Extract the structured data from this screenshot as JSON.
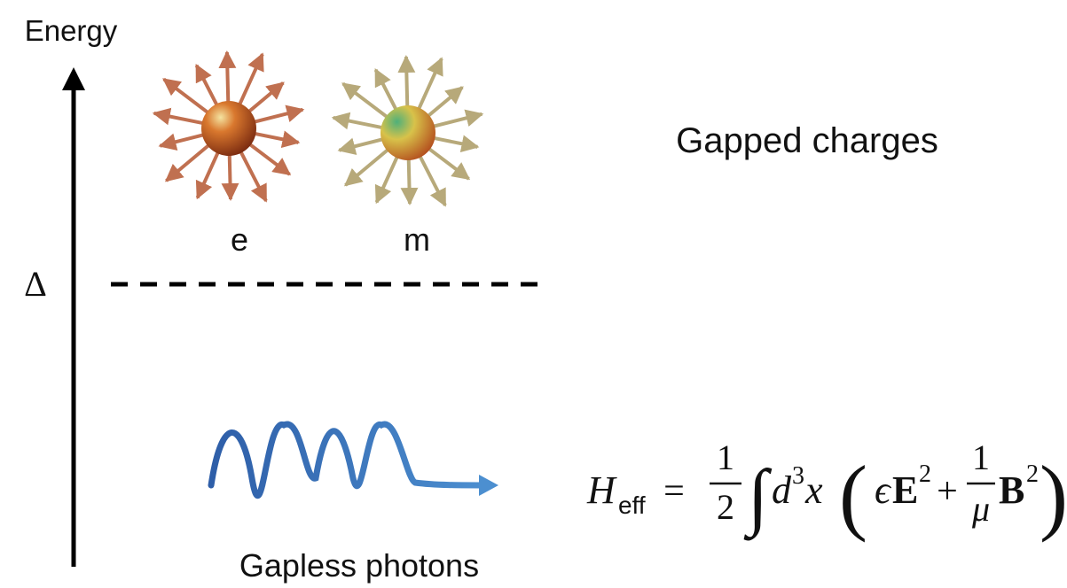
{
  "axis": {
    "label": "Energy",
    "gap_label": "Δ"
  },
  "charges": {
    "title": "Gapped charges",
    "labels": [
      "e",
      "m"
    ]
  },
  "photons": {
    "title": "Gapless photons"
  },
  "formula": {
    "symbol": "H",
    "subscript": "eff",
    "equals": "=",
    "half_num": "1",
    "half_den": "2",
    "integral": "∫",
    "measure": "d",
    "measure_power": "3",
    "variable": "x",
    "open": "(",
    "epsilon": "ϵ",
    "field_e": "E",
    "power_e": "2",
    "plus": "+",
    "frac_num": "1",
    "frac_den": "μ",
    "field_b": "B",
    "power_b": "2",
    "close": ")"
  }
}
